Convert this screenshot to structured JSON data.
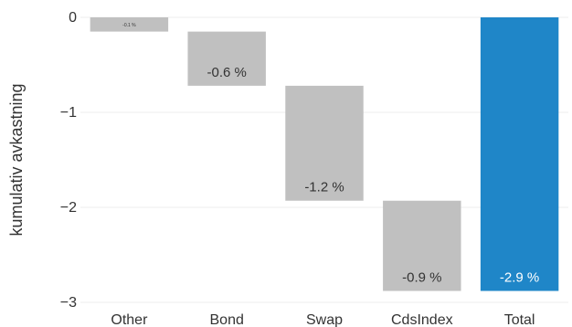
{
  "chart_data": {
    "type": "bar",
    "subtype": "waterfall",
    "ylabel": "kumulativ avkastning",
    "ylim": [
      -3,
      0
    ],
    "yticks": [
      0,
      -1,
      -2,
      -3
    ],
    "ytick_labels": [
      "0",
      "−1",
      "−2",
      "−3"
    ],
    "categories": [
      "Other",
      "Bond",
      "Swap",
      "CdsIndex",
      "Total"
    ],
    "values": [
      -0.15,
      -0.57,
      -1.21,
      -0.95,
      -2.88
    ],
    "data_labels": [
      "-0.1 %",
      "-0.6 %",
      "-1.2 %",
      "-0.9 %",
      "-2.9 %"
    ],
    "is_total": [
      false,
      false,
      false,
      false,
      true
    ],
    "colors": {
      "component": "#c0c0c0",
      "total": "#1f86c8",
      "grid": "#eeeeee",
      "text": "#333333",
      "label_on_total": "#ffffff"
    },
    "grid": true,
    "legend": "none"
  }
}
